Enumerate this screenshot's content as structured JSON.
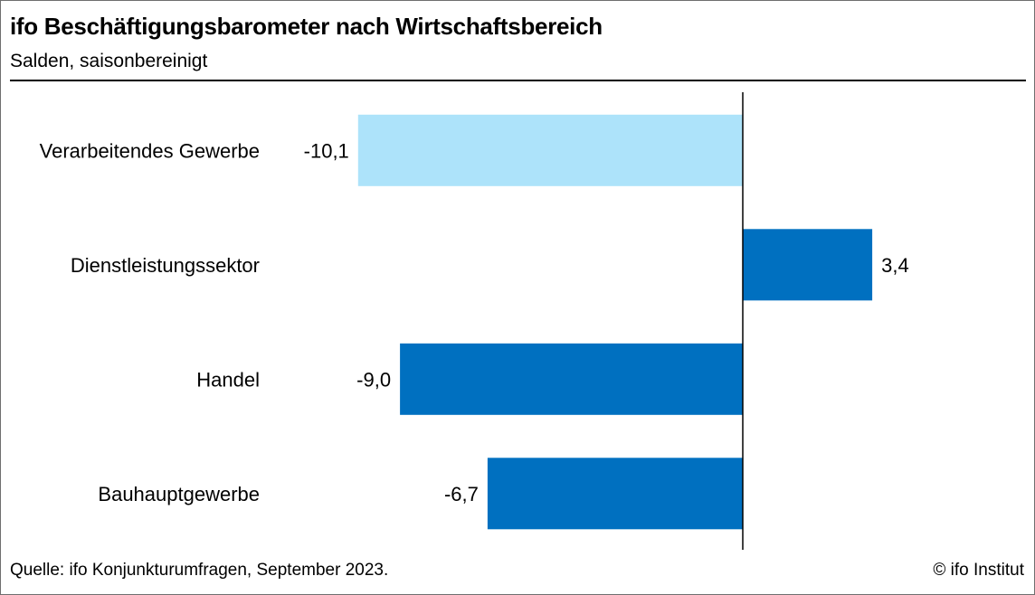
{
  "header": {
    "title": "ifo Beschäftigungsbarometer nach Wirtschaftsbereich",
    "subtitle": "Salden, saisonbereinigt"
  },
  "footer": {
    "source": "Quelle: ifo Konjunkturumfragen, September 2023.",
    "copyright": "© ifo Institut"
  },
  "colors": {
    "highlight_bar": "#ADE3FA",
    "bar": "#0070C0",
    "axis": "#000000"
  },
  "chart_data": {
    "type": "bar",
    "orientation": "horizontal",
    "title": "ifo Beschäftigungsbarometer nach Wirtschaftsbereich",
    "subtitle": "Salden, saisonbereinigt",
    "categories": [
      "Verarbeitendes Gewerbe",
      "Dienstleistungssektor",
      "Handel",
      "Bauhauptgewerbe"
    ],
    "values": [
      -10.1,
      3.4,
      -9.0,
      -6.7
    ],
    "value_labels": [
      "-10,1",
      "3,4",
      "-9,0",
      "-6,7"
    ],
    "highlighted_category": "Verarbeitendes Gewerbe",
    "xlim": [
      -11,
      5
    ],
    "grid": false,
    "legend": "none"
  }
}
